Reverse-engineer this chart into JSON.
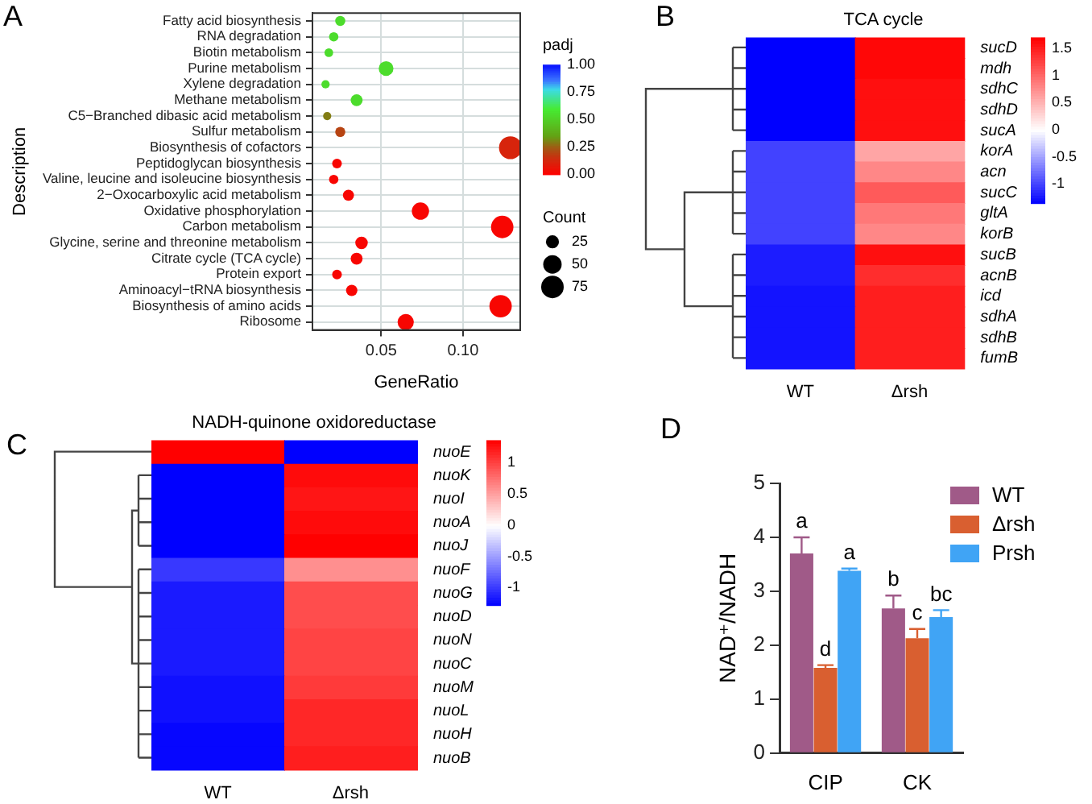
{
  "chart_data": [
    {
      "type": "bubble",
      "orientation": "horizontal",
      "annotations": [
        "A"
      ],
      "xlabel": "GeneRatio",
      "ylabel": "Description",
      "categories": [
        "Fatty acid biosynthesis",
        "RNA degradation",
        "Biotin metabolism",
        "Purine metabolism",
        "Xylene degradation",
        "Methane metabolism",
        "C5−Branched dibasic acid metabolism",
        "Sulfur metabolism",
        "Biosynthesis of cofactors",
        "Peptidoglycan biosynthesis",
        "Valine, leucine and isoleucine biosynthesis",
        "2−Oxocarboxylic acid metabolism",
        "Oxidative phosphorylation",
        "Carbon metabolism",
        "Glycine, serine and threonine metabolism",
        "Citrate cycle (TCA cycle)",
        "Protein export",
        "Aminoacyl−tRNA biosynthesis",
        "Biosynthesis of amino acids",
        "Ribosome"
      ],
      "values": [
        0.025,
        0.021,
        0.018,
        0.053,
        0.016,
        0.035,
        0.017,
        0.025,
        0.129,
        0.023,
        0.021,
        0.03,
        0.074,
        0.124,
        0.038,
        0.035,
        0.023,
        0.032,
        0.123,
        0.065
      ],
      "sizes": [
        15,
        13,
        11,
        32,
        10,
        21,
        10,
        15,
        77,
        14,
        13,
        18,
        44,
        74,
        23,
        21,
        14,
        19,
        74,
        39
      ],
      "cvalues": [
        0.55,
        0.55,
        0.55,
        0.55,
        0.55,
        0.55,
        0.3,
        0.2,
        0.12,
        0.02,
        0.02,
        0.02,
        0.02,
        0.02,
        0.02,
        0.02,
        0.02,
        0.02,
        0.02,
        0.02
      ],
      "clim": [
        0,
        1
      ],
      "cticks": [
        {
          "value": 0,
          "label": "0.00"
        },
        {
          "value": 0.25,
          "label": "0.25"
        },
        {
          "value": 0.5,
          "label": "0.50"
        },
        {
          "value": 0.75,
          "label": "0.75"
        },
        {
          "value": 1,
          "label": "1.00"
        }
      ],
      "clabel": "padj",
      "legend_title": "Count",
      "size_legend": [
        25,
        50,
        75
      ],
      "xlim": [
        0.008,
        0.135
      ],
      "xticks": [
        0.05,
        {
          "value": 0.1,
          "label": "0.10"
        }
      ],
      "grid": true
    },
    {
      "type": "heatmap",
      "title": "TCA cycle",
      "annotations": [
        "B"
      ],
      "categories": [
        "WT",
        "Δrsh"
      ],
      "y_categories": [
        "sucD",
        "mdh",
        "sdhC",
        "sdhD",
        "sucA",
        "korA",
        "acn",
        "sucC",
        "gltA",
        "korB",
        "sucB",
        "acnB",
        "icd",
        "sdhA",
        "sdhB",
        "fumB"
      ],
      "cells": [
        [
          -1.35,
          1.65
        ],
        [
          -1.35,
          1.65
        ],
        [
          -1.35,
          1.6
        ],
        [
          -1.35,
          1.6
        ],
        [
          -1.35,
          1.6
        ],
        [
          -1.0,
          0.6
        ],
        [
          -1.0,
          0.8
        ],
        [
          -1.0,
          1.1
        ],
        [
          -1.0,
          0.9
        ],
        [
          -1.0,
          0.8
        ],
        [
          -1.2,
          1.6
        ],
        [
          -1.2,
          1.4
        ],
        [
          -1.25,
          1.5
        ],
        [
          -1.25,
          1.5
        ],
        [
          -1.25,
          1.5
        ],
        [
          -1.25,
          1.5
        ]
      ],
      "clim": [
        -1.35,
        1.7
      ],
      "cticks": [
        -1,
        -0.5,
        0,
        0.5,
        1,
        1.5
      ]
    },
    {
      "type": "heatmap",
      "title": "NADH-quinone oxidoreductase",
      "annotations": [
        "C"
      ],
      "categories": [
        "WT",
        "Δrsh"
      ],
      "y_categories": [
        "nuoE",
        "nuoK",
        "nuoI",
        "nuoA",
        "nuoJ",
        "nuoF",
        "nuoG",
        "nuoD",
        "nuoN",
        "nuoC",
        "nuoM",
        "nuoL",
        "nuoH",
        "nuoB"
      ],
      "cells": [
        [
          1.36,
          -1.28
        ],
        [
          -1.28,
          1.3
        ],
        [
          -1.28,
          1.25
        ],
        [
          -1.28,
          1.3
        ],
        [
          -1.28,
          1.36
        ],
        [
          -1.0,
          0.6
        ],
        [
          -1.15,
          0.95
        ],
        [
          -1.15,
          0.95
        ],
        [
          -1.15,
          1.0
        ],
        [
          -1.15,
          1.0
        ],
        [
          -1.2,
          1.05
        ],
        [
          -1.2,
          1.15
        ],
        [
          -1.25,
          1.15
        ],
        [
          -1.25,
          1.2
        ]
      ],
      "clim": [
        -1.28,
        1.36
      ],
      "cticks": [
        -1,
        -0.5,
        0,
        0.5,
        1
      ]
    },
    {
      "type": "bar",
      "annotations": [
        "D"
      ],
      "ylabel": "NAD⁺/NADH",
      "categories": [
        "CIP",
        "CK"
      ],
      "series": [
        {
          "name": "WT",
          "color": "#a05a88",
          "values": [
            3.7,
            2.68
          ],
          "errors": [
            [
              3.7,
              4.0
            ],
            [
              2.68,
              2.92
            ]
          ],
          "value_labels": [
            "a",
            "b"
          ]
        },
        {
          "name": "Δrsh",
          "color": "#d95f30",
          "values": [
            1.58,
            2.13
          ],
          "errors": [
            [
              1.58,
              1.63
            ],
            [
              2.13,
              2.3
            ]
          ],
          "value_labels": [
            "d",
            "c"
          ]
        },
        {
          "name": "Prsh",
          "color": "#40a4f5",
          "values": [
            3.38,
            2.52
          ],
          "errors": [
            [
              3.38,
              3.42
            ],
            [
              2.52,
              2.65
            ]
          ],
          "value_labels": [
            "a",
            "bc"
          ]
        }
      ],
      "ylim": [
        0,
        5
      ],
      "yticks": [
        0,
        1,
        2,
        3,
        4,
        5
      ],
      "legend": "top right"
    }
  ]
}
